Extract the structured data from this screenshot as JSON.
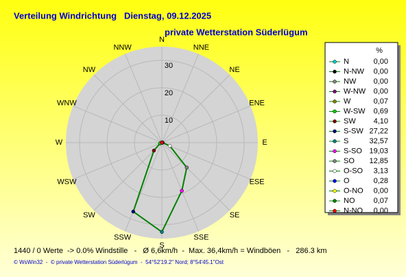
{
  "chart_data": {
    "type": "polar",
    "title": "Verteilung Windrichtung   Dienstag, 09.12.2025",
    "subtitle": "private Wetterstation Süderlügum",
    "direction_labels": [
      "N",
      "NNE",
      "NE",
      "ENE",
      "E",
      "ESE",
      "SE",
      "SSE",
      "S",
      "SSW",
      "SW",
      "WSW",
      "W",
      "WNW",
      "NW",
      "NNW"
    ],
    "rlim": [
      0,
      35
    ],
    "rticks": [
      10,
      20,
      30
    ],
    "legend_header": "%",
    "categories": [
      "N",
      "N-NW",
      "NW",
      "W-NW",
      "W",
      "W-SW",
      "SW",
      "S-SW",
      "S",
      "S-SO",
      "SO",
      "O-SO",
      "O",
      "O-NO",
      "NO",
      "N-NO"
    ],
    "values": [
      0,
      0,
      0,
      0,
      0.07,
      0.69,
      4.1,
      27.22,
      32.57,
      19.03,
      12.85,
      3.13,
      0.28,
      0,
      0.07,
      0
    ],
    "value_labels": [
      "0,00",
      "0,00",
      "0,00",
      "0,00",
      "0,07",
      "0,69",
      "4,10",
      "27,22",
      "32,57",
      "19,03",
      "12,85",
      "3,13",
      "0,28",
      "0,00",
      "0,07",
      "0,00"
    ],
    "point_colors": [
      "#00cccc",
      "#000000",
      "#808080",
      "#800080",
      "#808000",
      "#00cc00",
      "#800000",
      "#000080",
      "#008080",
      "#ff00ff",
      "#808080",
      "#ffffff",
      "#0000ff",
      "#ffff00",
      "#008000",
      "#ff0000"
    ],
    "line_color": "#008000",
    "footer": "1440 / 0 Werte  -> 0.0% Windstille   -   Ø 6,6km/h  -  Max. 36,4km/h = Windböen   -   286.3 km",
    "copyright": "© WsWin32  -  © private Wetterstation Süderlügum  -  54°52'19.2\" Nord; 8°54'45.1\"Ost"
  }
}
